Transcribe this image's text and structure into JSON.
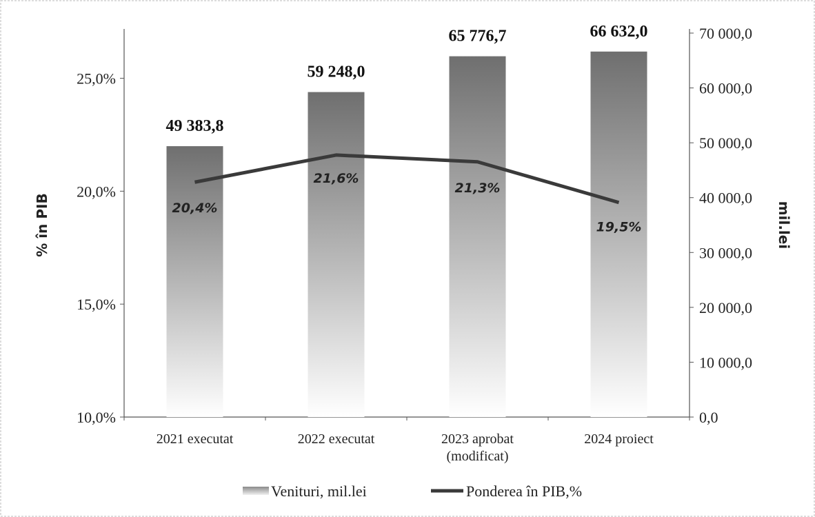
{
  "chart_data": {
    "type": "bar",
    "categories": [
      "2021 executat",
      "2022 executat",
      "2023 aprobat (modificat)",
      "2024 proiect"
    ],
    "category_lines": [
      [
        "2021 executat"
      ],
      [
        "2022 executat"
      ],
      [
        "2023 aprobat",
        "(modificat)"
      ],
      [
        "2024 proiect"
      ]
    ],
    "series": [
      {
        "name": "Venituri, mil.lei",
        "type": "bar",
        "axis": "right",
        "values": [
          49383.8,
          59248.0,
          65776.7,
          66632.0
        ],
        "labels": [
          "49 383,8",
          "59 248,0",
          "65 776,7",
          "66 632,0"
        ]
      },
      {
        "name": "Ponderea în PIB,%",
        "type": "line",
        "axis": "left",
        "values": [
          20.4,
          21.6,
          21.3,
          19.5
        ],
        "labels": [
          "20,4%",
          "21,6%",
          "21,3%",
          "19,5%"
        ]
      }
    ],
    "y_left": {
      "label": "% în PIB",
      "range": [
        10.0,
        27.0
      ],
      "ticks": [
        10.0,
        15.0,
        20.0,
        25.0
      ],
      "tick_labels": [
        "10,0%",
        "15,0%",
        "20,0%",
        "25,0%"
      ]
    },
    "y_right": {
      "label": "mil.lei",
      "range": [
        0,
        70000
      ],
      "ticks": [
        0,
        10000,
        20000,
        30000,
        40000,
        50000,
        60000,
        70000
      ],
      "tick_labels": [
        "0,0",
        "10 000,0",
        "20 000,0",
        "30 000,0",
        "40 000,0",
        "50 000,0",
        "60 000,0",
        "70 000,0"
      ]
    },
    "legend_position": "bottom",
    "grid": false,
    "colors": {
      "bar_top": "#6f6f6f",
      "bar_bottom": "#ffffff",
      "line": "#3a3a3a"
    }
  }
}
